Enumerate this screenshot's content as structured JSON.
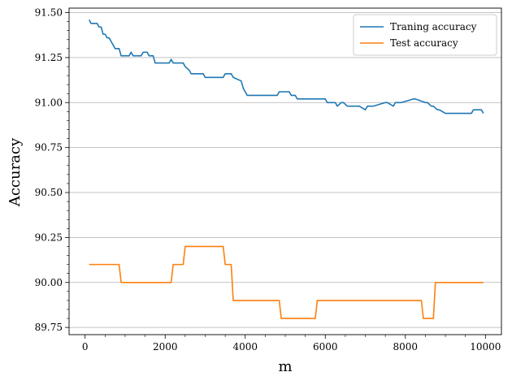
{
  "chart_data": {
    "type": "line",
    "title": "",
    "xlabel": "m",
    "ylabel": "Accuracy",
    "xlim": [
      -400,
      10400
    ],
    "ylim": [
      89.71,
      91.525
    ],
    "xticks": [
      0,
      2000,
      4000,
      6000,
      8000,
      10000
    ],
    "xtick_labels": [
      "0",
      "2000",
      "4000",
      "6000",
      "8000",
      "10000"
    ],
    "yticks": [
      89.75,
      90.0,
      90.25,
      90.5,
      90.75,
      91.0,
      91.25,
      91.5
    ],
    "ytick_labels": [
      "89.75",
      "90.00",
      "90.25",
      "90.50",
      "90.75",
      "91.00",
      "91.25",
      "91.50"
    ],
    "grid": "horizontal",
    "legend_position": "top-right",
    "colors": {
      "series0": "#1f77b4",
      "series1": "#ff7f0e",
      "grid": "#b0b0b0"
    },
    "series": [
      {
        "name": "Traning accuracy",
        "color": "#1f77b4",
        "x": [
          100,
          150,
          300,
          350,
          400,
          450,
          500,
          550,
          600,
          650,
          700,
          750,
          850,
          900,
          1100,
          1150,
          1200,
          1400,
          1450,
          1550,
          1600,
          1700,
          1750,
          2100,
          2150,
          2200,
          2450,
          2500,
          2600,
          2650,
          2950,
          3000,
          3450,
          3500,
          3650,
          3700,
          3900,
          3950,
          4000,
          4050,
          4800,
          4850,
          5100,
          5150,
          5250,
          5300,
          6000,
          6050,
          6250,
          6300,
          6400,
          6450,
          6550,
          6600,
          6800,
          6850,
          7000,
          7050,
          7150,
          7200,
          7500,
          7550,
          7700,
          7750,
          7850,
          7900,
          8200,
          8250,
          8500,
          8550,
          8650,
          8700,
          8800,
          8850,
          9000,
          9050,
          9650,
          9700,
          9850,
          9900,
          9950
        ],
        "y": [
          91.46,
          91.44,
          91.44,
          91.42,
          91.42,
          91.38,
          91.38,
          91.36,
          91.36,
          91.34,
          91.32,
          91.3,
          91.3,
          91.26,
          91.26,
          91.28,
          91.26,
          91.26,
          91.28,
          91.28,
          91.26,
          91.26,
          91.22,
          91.22,
          91.24,
          91.22,
          91.22,
          91.2,
          91.18,
          91.16,
          91.16,
          91.14,
          91.14,
          91.16,
          91.16,
          91.14,
          91.12,
          91.08,
          91.06,
          91.04,
          91.04,
          91.06,
          91.06,
          91.04,
          91.04,
          91.02,
          91.02,
          91.0,
          91.0,
          90.98,
          91.0,
          91.0,
          90.98,
          90.98,
          90.98,
          90.98,
          90.96,
          90.98,
          90.98,
          90.98,
          91.0,
          91.0,
          90.98,
          91.0,
          91.0,
          91.0,
          91.02,
          91.02,
          91.0,
          91.0,
          90.98,
          90.98,
          90.96,
          90.96,
          90.94,
          90.94,
          90.94,
          90.96,
          90.96,
          90.96,
          90.94
        ]
      },
      {
        "name": "Test accuracy",
        "color": "#ff7f0e",
        "x": [
          100,
          850,
          900,
          2150,
          2200,
          2450,
          2500,
          3450,
          3500,
          3650,
          3700,
          4850,
          4900,
          5750,
          5800,
          8400,
          8450,
          8700,
          8750,
          9950
        ],
        "y": [
          90.1,
          90.1,
          90.0,
          90.0,
          90.1,
          90.1,
          90.2,
          90.2,
          90.1,
          90.1,
          89.9,
          89.9,
          89.8,
          89.8,
          89.9,
          89.9,
          89.8,
          89.8,
          90.0,
          90.0
        ]
      }
    ]
  }
}
